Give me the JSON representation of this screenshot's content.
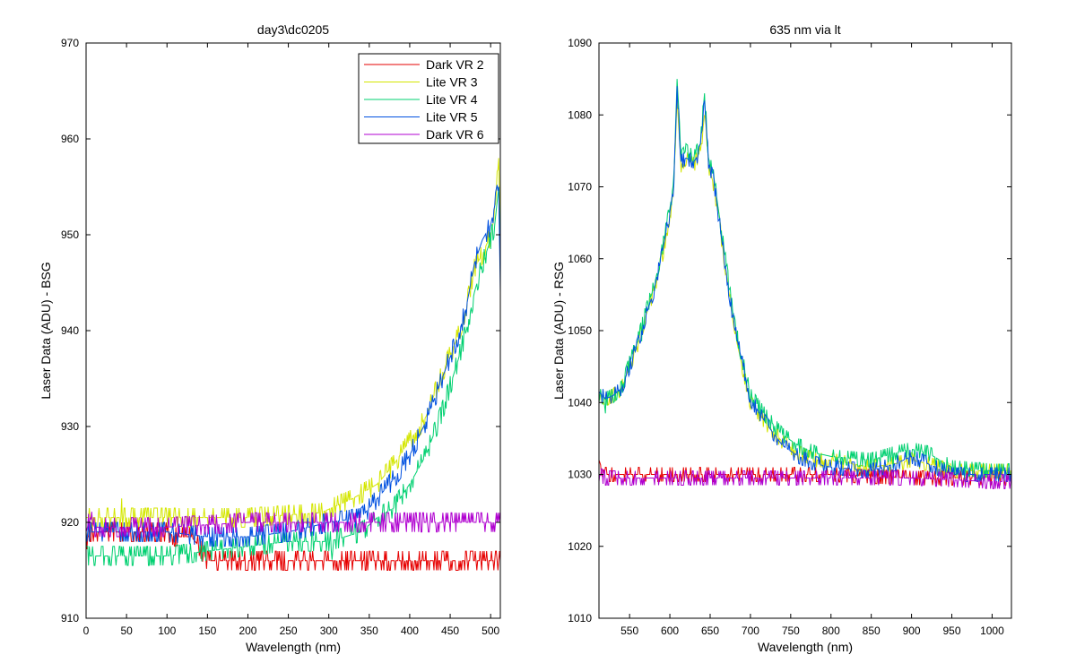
{
  "chart_data": [
    {
      "type": "line",
      "title": "day3\\dc0205",
      "xlabel": "Wavelength (nm)",
      "ylabel": "Laser Data (ADU) - BSG",
      "xlim": [
        0,
        512
      ],
      "ylim": [
        910,
        970
      ],
      "xticks": [
        0,
        50,
        100,
        150,
        200,
        250,
        300,
        350,
        400,
        450,
        500
      ],
      "yticks": [
        910,
        920,
        930,
        940,
        950,
        960,
        970
      ],
      "legend_position": "top-right",
      "grid": false,
      "series": [
        {
          "name": "Dark VR 2",
          "color": "#e60000",
          "noise": 0.9,
          "x": [
            0,
            5,
            10,
            50,
            100,
            110,
            130,
            140,
            150,
            160,
            200,
            300,
            400,
            500,
            512
          ],
          "y": [
            918,
            919,
            919,
            919,
            919,
            918.5,
            918.5,
            917.5,
            916,
            916,
            916,
            916,
            916,
            916,
            916
          ]
        },
        {
          "name": "Lite VR 3",
          "color": "#d4e600",
          "noise": 1.0,
          "x": [
            0,
            10,
            50,
            100,
            200,
            290,
            330,
            360,
            380,
            400,
            420,
            440,
            460,
            470,
            480,
            490,
            500,
            505,
            510,
            512
          ],
          "y": [
            920.5,
            920.5,
            920.5,
            920.5,
            920.5,
            921,
            922.5,
            924,
            926,
            928.5,
            931,
            935.5,
            939.5,
            942.5,
            946.5,
            948,
            950,
            952,
            958,
            947
          ]
        },
        {
          "name": "Lite VR 4",
          "color": "#00d070",
          "noise": 1.0,
          "x": [
            0,
            10,
            50,
            100,
            150,
            200,
            250,
            300,
            340,
            360,
            380,
            400,
            420,
            440,
            460,
            470,
            480,
            490,
            500,
            505,
            510,
            512
          ],
          "y": [
            916.5,
            916.5,
            916.5,
            916.5,
            917,
            917.5,
            918,
            918,
            919,
            920.5,
            921.5,
            924,
            927,
            931.5,
            937,
            940,
            944,
            947,
            949.5,
            951,
            955,
            946
          ]
        },
        {
          "name": "Lite VR 5",
          "color": "#0050e0",
          "noise": 0.9,
          "x": [
            0,
            10,
            50,
            100,
            150,
            200,
            250,
            300,
            340,
            360,
            380,
            400,
            420,
            440,
            460,
            470,
            480,
            490,
            500,
            505,
            510,
            512
          ],
          "y": [
            919,
            919,
            919,
            919,
            918.5,
            918.5,
            919,
            920,
            920.5,
            922.5,
            924.5,
            927,
            930.5,
            935,
            939.5,
            942.5,
            947,
            949.5,
            951,
            953,
            955,
            944
          ]
        },
        {
          "name": "Dark VR 6",
          "color": "#b000d0",
          "noise": 0.9,
          "x": [
            0,
            5,
            10,
            50,
            100,
            200,
            300,
            400,
            500,
            512
          ],
          "y": [
            919,
            920.5,
            919.5,
            919.5,
            919.5,
            920,
            920,
            920,
            920,
            920
          ]
        }
      ]
    },
    {
      "type": "line",
      "title": "635 nm via lt",
      "xlabel": "Wavelength (nm)",
      "ylabel": "Laser Data (ADU) - RSG",
      "xlim": [
        512,
        1024
      ],
      "ylim": [
        1010,
        1090
      ],
      "xticks": [
        550,
        600,
        650,
        700,
        750,
        800,
        850,
        900,
        950,
        1000
      ],
      "yticks": [
        1010,
        1020,
        1030,
        1040,
        1050,
        1060,
        1070,
        1080,
        1090
      ],
      "grid": false,
      "series": [
        {
          "name": "Dark VR 2",
          "color": "#e60000",
          "noise": 0.9,
          "x": [
            512,
            515,
            520,
            600,
            700,
            800,
            900,
            1000,
            1024
          ],
          "y": [
            1032,
            1031,
            1030,
            1030,
            1030,
            1030,
            1029.5,
            1029.5,
            1029.5
          ]
        },
        {
          "name": "Lite VR 3",
          "color": "#d4e600",
          "noise": 0.9,
          "x": [
            512,
            520,
            530,
            540,
            550,
            560,
            570,
            580,
            590,
            600,
            605,
            609,
            614,
            620,
            630,
            638,
            643,
            648,
            655,
            665,
            680,
            700,
            720,
            740,
            760,
            780,
            800,
            850,
            880,
            900,
            920,
            950,
            1000,
            1024
          ],
          "y": [
            1041.5,
            1040.5,
            1041,
            1042,
            1045,
            1048,
            1052,
            1055.5,
            1060,
            1066,
            1070,
            1082,
            1073,
            1074,
            1073,
            1075,
            1080,
            1073,
            1070,
            1062,
            1050,
            1040,
            1037,
            1034.5,
            1033,
            1032,
            1032,
            1031,
            1031.5,
            1032,
            1031.5,
            1030.5,
            1030.5,
            1030.5
          ]
        },
        {
          "name": "Lite VR 4",
          "color": "#00d070",
          "noise": 1.0,
          "x": [
            512,
            520,
            530,
            540,
            550,
            560,
            570,
            580,
            590,
            600,
            605,
            609,
            614,
            620,
            630,
            638,
            643,
            648,
            655,
            665,
            680,
            700,
            720,
            740,
            760,
            780,
            800,
            850,
            880,
            900,
            920,
            950,
            1000,
            1024
          ],
          "y": [
            1041,
            1040.5,
            1041,
            1042,
            1045.5,
            1048.5,
            1052.5,
            1056,
            1061,
            1067,
            1071,
            1084,
            1074,
            1075,
            1074,
            1076,
            1083,
            1074,
            1071,
            1063,
            1051,
            1041,
            1038,
            1035.5,
            1034,
            1033,
            1032.5,
            1032,
            1033,
            1033.5,
            1033,
            1031,
            1030.5,
            1030.5
          ]
        },
        {
          "name": "Lite VR 5",
          "color": "#0050e0",
          "noise": 0.9,
          "x": [
            512,
            520,
            530,
            540,
            550,
            560,
            570,
            580,
            590,
            600,
            605,
            609,
            614,
            620,
            630,
            638,
            643,
            648,
            655,
            665,
            680,
            700,
            720,
            740,
            760,
            780,
            800,
            850,
            880,
            900,
            920,
            950,
            1000,
            1024
          ],
          "y": [
            1041.5,
            1040.5,
            1041,
            1042,
            1045,
            1048,
            1052,
            1055.5,
            1060.5,
            1066.5,
            1070.5,
            1084,
            1073.5,
            1074,
            1073.5,
            1075,
            1082,
            1073.5,
            1070.5,
            1062,
            1050.5,
            1040.5,
            1037,
            1034,
            1032.5,
            1031.5,
            1031,
            1030.5,
            1031.5,
            1032.5,
            1031.5,
            1030,
            1030,
            1030
          ]
        },
        {
          "name": "Dark VR 6",
          "color": "#b000d0",
          "noise": 0.9,
          "x": [
            512,
            520,
            600,
            700,
            800,
            900,
            1000,
            1024
          ],
          "y": [
            1030,
            1029.5,
            1029.5,
            1029.5,
            1029.5,
            1029.5,
            1029,
            1029
          ]
        }
      ]
    }
  ]
}
